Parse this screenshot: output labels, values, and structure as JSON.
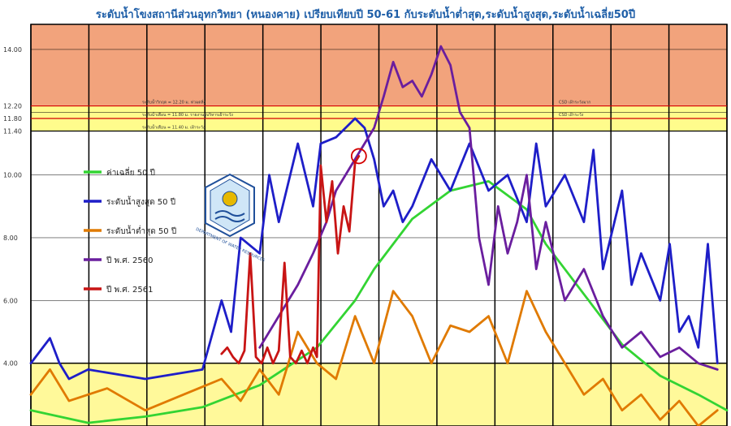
{
  "chart_data": {
    "type": "line",
    "title": "ระดับน้ำโขงสถานีส่วนอุทกวิทยา (หนองคาย) เปรียบเทียบปี 50-61 กับระดับน้ำต่ำสุด,ระดับน้ำสูงสุด,ระดับน้ำเฉลี่ย50ปี",
    "xlabel": "",
    "ylabel": "",
    "ylim": [
      2.0,
      14.8
    ],
    "xlim": [
      0,
      365
    ],
    "yticks": [
      "4.00",
      "6.00",
      "8.00",
      "10.00",
      "14.00"
    ],
    "grid": true,
    "legend_position": "left",
    "colors": {
      "zone_red": "#f2a37c",
      "zone_yellow": "#fffc8c",
      "zone_low": "#fff99a",
      "threshold": "#d40000",
      "axis_text_red": "#d40000",
      "axis_text_orange": "#e07a00"
    },
    "thresholds": [
      {
        "value": 12.2,
        "label": "12.20",
        "annotation_left": "ระดับน้ำวิกฤต = 12.20 ม. ท่วมตลิ่ง",
        "annotation_right": "CSD เฝ้าระวังมาก"
      },
      {
        "value": 11.8,
        "label": "11.80",
        "annotation_left": "ระดับน้ำเตือน = 11.80 ม. รายงานผู้บริหารเฝ้าระวัง",
        "annotation_right": "CSD เฝ้าระวัง"
      },
      {
        "value": 11.4,
        "label": "11.40",
        "annotation_left": "ระดับน้ำเตือน = 11.40 ม. เฝ้าระวัง",
        "annotation_right": ""
      }
    ],
    "series": [
      {
        "name": "ค่าเฉลี่ย 50 ปี",
        "color": "#33d433",
        "x": [
          0,
          30,
          60,
          90,
          120,
          150,
          170,
          180,
          200,
          220,
          240,
          260,
          270,
          290,
          310,
          330,
          350,
          365
        ],
        "y": [
          2.5,
          2.1,
          2.3,
          2.6,
          3.3,
          4.5,
          6.0,
          7.0,
          8.6,
          9.5,
          9.8,
          8.9,
          7.8,
          6.2,
          4.6,
          3.6,
          3.0,
          2.5
        ]
      },
      {
        "name": "ระดับน้ำสูงสุด 50 ปี",
        "color": "#1e1ec8",
        "x": [
          0,
          10,
          15,
          20,
          30,
          60,
          90,
          100,
          105,
          110,
          120,
          125,
          130,
          140,
          148,
          152,
          160,
          165,
          170,
          175,
          180,
          185,
          190,
          195,
          200,
          210,
          220,
          230,
          240,
          250,
          260,
          265,
          270,
          280,
          290,
          295,
          300,
          310,
          315,
          320,
          330,
          335,
          340,
          345,
          350,
          355,
          360
        ],
        "y": [
          4.0,
          4.8,
          4.0,
          3.5,
          3.8,
          3.5,
          3.8,
          6.0,
          5.0,
          8.0,
          7.5,
          10.0,
          8.5,
          11.0,
          9.0,
          11.0,
          11.2,
          11.5,
          11.8,
          11.5,
          10.5,
          9.0,
          9.5,
          8.5,
          9.0,
          10.5,
          9.5,
          11.0,
          9.5,
          10.0,
          8.5,
          11.0,
          9.0,
          10.0,
          8.5,
          10.8,
          7.0,
          9.5,
          6.5,
          7.5,
          6.0,
          7.8,
          5.0,
          5.5,
          4.5,
          7.8,
          4.0
        ]
      },
      {
        "name": "ระดับน้ำต่ำสุด 50 ปี",
        "color": "#e07a00",
        "x": [
          0,
          10,
          20,
          40,
          60,
          80,
          100,
          110,
          120,
          130,
          140,
          150,
          160,
          170,
          180,
          190,
          200,
          210,
          220,
          230,
          240,
          250,
          260,
          270,
          280,
          290,
          300,
          310,
          320,
          330,
          340,
          350,
          360
        ],
        "y": [
          3.0,
          3.8,
          2.8,
          3.2,
          2.5,
          3.0,
          3.5,
          2.8,
          3.8,
          3.0,
          5.0,
          4.0,
          3.5,
          5.5,
          4.0,
          6.3,
          5.5,
          4.0,
          5.2,
          5.0,
          5.5,
          4.0,
          6.3,
          5.0,
          4.0,
          3.0,
          3.5,
          2.5,
          3.0,
          2.2,
          2.8,
          2.0,
          2.5
        ]
      },
      {
        "name": "ปี พ.ศ. 2560",
        "color": "#6a1e9e",
        "x": [
          120,
          130,
          140,
          148,
          155,
          160,
          170,
          180,
          185,
          190,
          195,
          200,
          205,
          210,
          215,
          220,
          225,
          230,
          235,
          240,
          245,
          250,
          255,
          260,
          265,
          270,
          280,
          290,
          300,
          310,
          320,
          330,
          340,
          350,
          360
        ],
        "y": [
          4.5,
          5.5,
          6.5,
          7.5,
          8.5,
          9.5,
          10.5,
          11.5,
          12.5,
          13.6,
          12.8,
          13.0,
          12.5,
          13.2,
          14.1,
          13.5,
          12.0,
          11.5,
          8.0,
          6.5,
          9.0,
          7.5,
          8.5,
          10.0,
          7.0,
          8.5,
          6.0,
          7.0,
          5.5,
          4.5,
          5.0,
          4.2,
          4.5,
          4.0,
          3.8
        ]
      },
      {
        "name": "ปี พ.ศ. 2561",
        "color": "#c81414",
        "x": [
          100,
          103,
          106,
          109,
          112,
          115,
          118,
          121,
          124,
          127,
          130,
          133,
          136,
          139,
          142,
          145,
          148,
          150,
          152,
          155,
          158,
          161,
          164,
          167,
          170,
          172
        ],
        "y": [
          4.3,
          4.5,
          4.2,
          4.0,
          4.4,
          7.5,
          4.2,
          4.0,
          4.5,
          4.0,
          4.4,
          7.2,
          4.2,
          4.0,
          4.4,
          4.0,
          4.5,
          4.2,
          10.3,
          8.5,
          9.8,
          7.5,
          9.0,
          8.2,
          10.4,
          10.6
        ]
      }
    ],
    "annotations": [
      {
        "x": 172,
        "y": 10.6,
        "kind": "circle-marker"
      }
    ]
  },
  "seal": {
    "caption": "DEPARTMENT OF WATER RESOURCES"
  }
}
